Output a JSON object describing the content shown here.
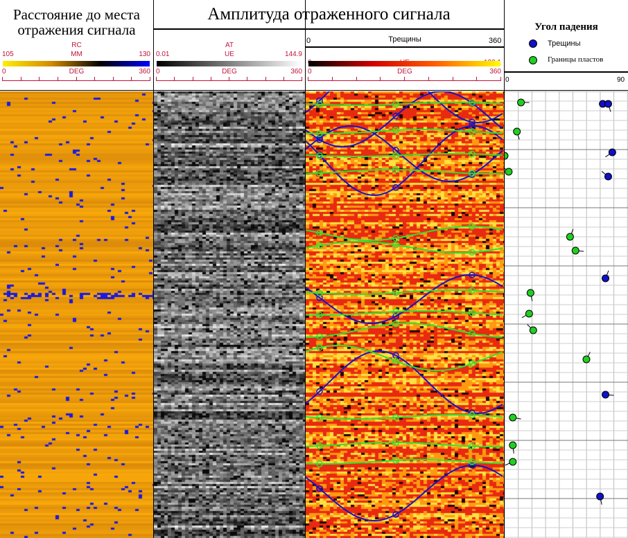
{
  "tracks": [
    {
      "title": "Расстояние до места отражения сигнала",
      "mnemonic": "RC",
      "unit": "MM",
      "min": "105",
      "max": "130",
      "az_unit": "DEG",
      "az_min": "0",
      "az_max": "360",
      "colors": [
        "#ffee00",
        "#d08a00",
        "#000000",
        "#0000ff"
      ]
    },
    {
      "title": "Амплитуда отраженного сигнала",
      "mnemonic": "AT",
      "unit": "UE",
      "min": "0.01",
      "max": "144.9",
      "az_unit": "DEG",
      "az_min": "0",
      "az_max": "360",
      "colors": [
        "#000000",
        "#ffffff"
      ]
    },
    {
      "label": "Трещины",
      "top_min": "0",
      "top_max": "360",
      "unit": "UE",
      "min": "0",
      "max": "132.1",
      "az_unit": "DEG",
      "az_min": "0",
      "az_max": "360",
      "colors": [
        "#000000",
        "#d00000",
        "#ff6000",
        "#ffff00"
      ]
    }
  ],
  "chart_data": {
    "type": "scatter",
    "title": "Угол падения",
    "legend": [
      {
        "name": "Трещины",
        "color": "#1010c8"
      },
      {
        "name": "Границы пластов",
        "color": "#20d020"
      }
    ],
    "xlim": [
      0,
      90
    ],
    "x_min_label": "0",
    "x_max_label": "90",
    "grid": true,
    "legend_placement": "top",
    "series": [
      {
        "name": "Трещины",
        "dip": [
          72,
          76,
          79,
          76,
          74,
          74,
          70
        ]
      },
      {
        "name": "Границы пластов",
        "dip": [
          12,
          9,
          0,
          3,
          48,
          52,
          19,
          18,
          21,
          60,
          6,
          6,
          6
        ]
      }
    ]
  }
}
